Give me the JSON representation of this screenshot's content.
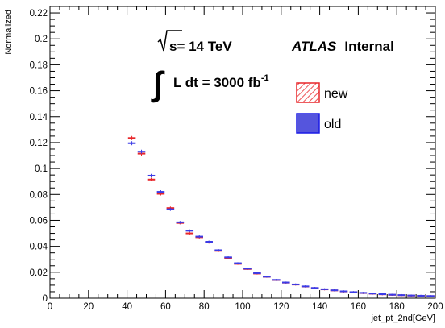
{
  "chart_data": {
    "type": "scatter",
    "xlabel": "jet_pt_2nd[GeV]",
    "ylabel": "Normalized",
    "xlim": [
      0,
      200
    ],
    "ylim": [
      0,
      0.225
    ],
    "x_ticks": [
      "0",
      "20",
      "40",
      "60",
      "80",
      "100",
      "120",
      "140",
      "160",
      "180",
      "200"
    ],
    "y_ticks": [
      "0",
      "0.02",
      "0.04",
      "0.06",
      "0.08",
      "0.1",
      "0.12",
      "0.14",
      "0.16",
      "0.18",
      "0.2",
      "0.22"
    ],
    "annotations": {
      "energy": "s= 14 TeV",
      "lumi_prefix": "L dt = 3000 fb",
      "lumi_exp": "-1",
      "experiment": "ATLAS",
      "status": "Internal"
    },
    "legend_position": "top-right",
    "series": [
      {
        "name": "new",
        "color": "#e8262a",
        "fill_style": "hatched",
        "x": [
          42.5,
          47.5,
          52.5,
          57.5,
          62.5,
          67.5,
          72.5,
          77.5,
          82.5,
          87.5,
          92.5,
          97.5,
          102.5,
          107.5,
          112.5,
          117.5,
          122.5,
          127.5,
          132.5,
          137.5,
          142.5,
          147.5,
          152.5,
          157.5,
          162.5,
          167.5,
          172.5,
          177.5,
          182.5,
          187.5,
          192.5,
          197.5
        ],
        "values": [
          0.1235,
          0.1115,
          0.0915,
          0.0805,
          0.0695,
          0.058,
          0.05,
          0.047,
          0.043,
          0.0365,
          0.031,
          0.0265,
          0.0225,
          0.019,
          0.0165,
          0.014,
          0.012,
          0.0105,
          0.009,
          0.0078,
          0.0068,
          0.006,
          0.0052,
          0.0046,
          0.004,
          0.0035,
          0.003,
          0.0026,
          0.0023,
          0.002,
          0.0018,
          0.0016
        ]
      },
      {
        "name": "old",
        "color": "#3b3be6",
        "fill_style": "solid",
        "x": [
          42.5,
          47.5,
          52.5,
          57.5,
          62.5,
          67.5,
          72.5,
          77.5,
          82.5,
          87.5,
          92.5,
          97.5,
          102.5,
          107.5,
          112.5,
          117.5,
          122.5,
          127.5,
          132.5,
          137.5,
          142.5,
          147.5,
          152.5,
          157.5,
          162.5,
          167.5,
          172.5,
          177.5,
          182.5,
          187.5,
          192.5,
          197.5
        ],
        "values": [
          0.1195,
          0.113,
          0.0945,
          0.082,
          0.0685,
          0.0585,
          0.052,
          0.0475,
          0.0435,
          0.037,
          0.0315,
          0.027,
          0.0228,
          0.0193,
          0.0166,
          0.0141,
          0.0121,
          0.0106,
          0.0091,
          0.0079,
          0.0069,
          0.0061,
          0.0053,
          0.0047,
          0.0041,
          0.0036,
          0.0031,
          0.0027,
          0.0024,
          0.0021,
          0.0019,
          0.0017
        ]
      }
    ]
  }
}
